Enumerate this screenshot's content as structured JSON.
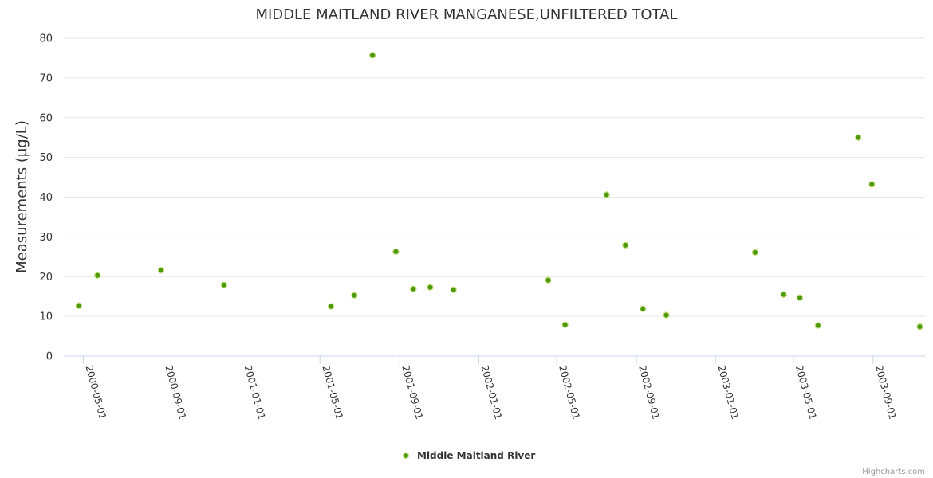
{
  "chart_data": {
    "type": "scatter",
    "title": "MIDDLE MAITLAND RIVER MANGANESE,UNFILTERED TOTAL",
    "ylabel": "Measurements (µg/L)",
    "xlabel": "",
    "ylim": [
      0,
      80
    ],
    "yticks": [
      0,
      10,
      20,
      30,
      40,
      50,
      60,
      70,
      80
    ],
    "xlim": [
      "2000-04-01",
      "2003-11-20"
    ],
    "xticks": [
      "2000-05-01",
      "2000-09-01",
      "2001-01-01",
      "2001-05-01",
      "2001-09-01",
      "2002-01-01",
      "2002-05-01",
      "2002-09-01",
      "2003-01-01",
      "2003-05-01",
      "2003-09-01"
    ],
    "grid": true,
    "legend_position": "bottom-center",
    "series": [
      {
        "name": "Middle Maitland River",
        "color": "#4c9a06",
        "points": [
          {
            "x": "2000-04-24",
            "y": 12.7
          },
          {
            "x": "2000-05-23",
            "y": 20.3
          },
          {
            "x": "2000-08-29",
            "y": 21.6
          },
          {
            "x": "2000-12-04",
            "y": 17.9
          },
          {
            "x": "2001-05-18",
            "y": 12.5
          },
          {
            "x": "2001-06-23",
            "y": 15.3
          },
          {
            "x": "2001-07-21",
            "y": 75.7
          },
          {
            "x": "2001-08-26",
            "y": 26.3
          },
          {
            "x": "2001-09-22",
            "y": 16.9
          },
          {
            "x": "2001-10-18",
            "y": 17.3
          },
          {
            "x": "2001-11-23",
            "y": 16.7
          },
          {
            "x": "2002-04-18",
            "y": 19.1
          },
          {
            "x": "2002-05-14",
            "y": 7.9
          },
          {
            "x": "2002-07-17",
            "y": 40.6
          },
          {
            "x": "2002-08-15",
            "y": 27.9
          },
          {
            "x": "2002-09-11",
            "y": 11.9
          },
          {
            "x": "2002-10-17",
            "y": 10.3
          },
          {
            "x": "2003-03-03",
            "y": 26.1
          },
          {
            "x": "2003-04-16",
            "y": 15.5
          },
          {
            "x": "2003-05-11",
            "y": 14.7
          },
          {
            "x": "2003-06-08",
            "y": 7.7
          },
          {
            "x": "2003-08-09",
            "y": 55.0
          },
          {
            "x": "2003-08-30",
            "y": 43.2
          },
          {
            "x": "2003-11-12",
            "y": 7.4
          }
        ]
      }
    ]
  },
  "credits": "Highcharts.com"
}
